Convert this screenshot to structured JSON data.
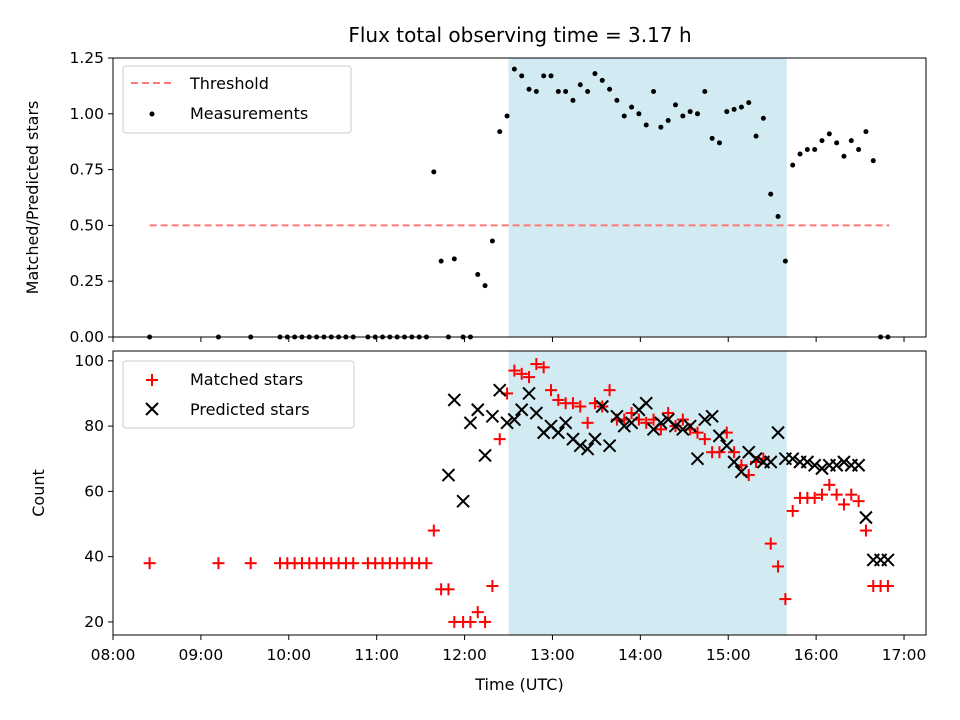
{
  "colors": {
    "threshold": "#ff7878",
    "measurements": "#000000",
    "matched": "#ff0000",
    "predicted": "#000000",
    "band": "#add8e6"
  },
  "chart_data": [
    {
      "type": "scatter",
      "title": "Flux total observing time = 3.17 h",
      "xlabel": "",
      "ylabel": "Matched/Predicted stars",
      "xlim": [
        "08:00",
        "17:15"
      ],
      "ylim": [
        0,
        1.25
      ],
      "yticks": [
        "0.00",
        "0.25",
        "0.50",
        "0.75",
        "1.00",
        "1.25"
      ],
      "highlight_band": {
        "x0": "12:30",
        "x1": "15:40"
      },
      "legend_position": "upper left",
      "grid": false,
      "series": [
        {
          "name": "Threshold",
          "style": "dashed-line",
          "x": [
            "08:25",
            "16:50"
          ],
          "y": [
            0.5,
            0.5
          ]
        },
        {
          "name": "Measurements",
          "style": "dot",
          "x": [
            "08:25",
            "09:12",
            "09:34",
            "09:54",
            "09:59",
            "10:04",
            "10:09",
            "10:14",
            "10:19",
            "10:24",
            "10:29",
            "10:34",
            "10:39",
            "10:44",
            "10:54",
            "10:59",
            "11:04",
            "11:09",
            "11:14",
            "11:19",
            "11:24",
            "11:29",
            "11:34",
            "11:39",
            "11:44",
            "11:49",
            "11:53",
            "11:59",
            "12:04",
            "12:09",
            "12:14",
            "12:19",
            "12:24",
            "12:29",
            "12:34",
            "12:39",
            "12:44",
            "12:49",
            "12:54",
            "12:59",
            "13:04",
            "13:09",
            "13:14",
            "13:19",
            "13:24",
            "13:29",
            "13:34",
            "13:39",
            "13:44",
            "13:49",
            "13:54",
            "13:59",
            "14:04",
            "14:09",
            "14:14",
            "14:19",
            "14:24",
            "14:29",
            "14:34",
            "14:39",
            "14:44",
            "14:49",
            "14:54",
            "14:59",
            "15:04",
            "15:09",
            "15:14",
            "15:19",
            "15:24",
            "15:29",
            "15:34",
            "15:39",
            "15:44",
            "15:49",
            "15:54",
            "15:59",
            "16:04",
            "16:09",
            "16:14",
            "16:19",
            "16:24",
            "16:29",
            "16:34",
            "16:39",
            "16:44",
            "16:49"
          ],
          "y": [
            0,
            0,
            0,
            0,
            0,
            0,
            0,
            0,
            0,
            0,
            0,
            0,
            0,
            0,
            0,
            0,
            0,
            0,
            0,
            0,
            0,
            0,
            0,
            0.74,
            0.34,
            0,
            0.35,
            0,
            0,
            0.28,
            0.23,
            0.43,
            0.92,
            0.99,
            1.2,
            1.17,
            1.11,
            1.1,
            1.17,
            1.17,
            1.1,
            1.1,
            1.06,
            1.13,
            1.1,
            1.18,
            1.15,
            1.11,
            1.06,
            0.99,
            1.03,
            1.0,
            0.95,
            1.1,
            0.94,
            0.97,
            1.04,
            0.99,
            1.01,
            1.0,
            1.1,
            0.89,
            0.87,
            1.01,
            1.02,
            1.03,
            1.05,
            0.9,
            0.98,
            0.64,
            0.54,
            0.34,
            0.77,
            0.82,
            0.84,
            0.84,
            0.88,
            0.91,
            0.87,
            0.81,
            0.88,
            0.84,
            0.92,
            0.79,
            0,
            0
          ]
        }
      ]
    },
    {
      "type": "scatter",
      "title": "",
      "xlabel": "Time (UTC)",
      "ylabel": "Count",
      "xlim": [
        "08:00",
        "17:15"
      ],
      "ylim": [
        16,
        103
      ],
      "xticks": [
        "08:00",
        "09:00",
        "10:00",
        "11:00",
        "12:00",
        "13:00",
        "14:00",
        "15:00",
        "16:00",
        "17:00"
      ],
      "yticks": [
        "20",
        "40",
        "60",
        "80",
        "100"
      ],
      "highlight_band": {
        "x0": "12:30",
        "x1": "15:40"
      },
      "legend_position": "upper left",
      "grid": false,
      "series": [
        {
          "name": "Matched stars",
          "marker": "+",
          "x": [
            "08:25",
            "09:12",
            "09:34",
            "09:54",
            "09:59",
            "10:04",
            "10:09",
            "10:14",
            "10:19",
            "10:24",
            "10:29",
            "10:34",
            "10:39",
            "10:44",
            "10:54",
            "10:59",
            "11:04",
            "11:09",
            "11:14",
            "11:19",
            "11:24",
            "11:29",
            "11:34",
            "11:39",
            "11:44",
            "11:49",
            "11:53",
            "11:59",
            "12:04",
            "12:09",
            "12:14",
            "12:19",
            "12:24",
            "12:29",
            "12:34",
            "12:39",
            "12:44",
            "12:49",
            "12:54",
            "12:59",
            "13:04",
            "13:09",
            "13:14",
            "13:19",
            "13:24",
            "13:29",
            "13:34",
            "13:39",
            "13:44",
            "13:49",
            "13:54",
            "13:59",
            "14:04",
            "14:09",
            "14:14",
            "14:19",
            "14:24",
            "14:29",
            "14:34",
            "14:39",
            "14:44",
            "14:49",
            "14:54",
            "14:59",
            "15:04",
            "15:09",
            "15:14",
            "15:19",
            "15:24",
            "15:29",
            "15:34",
            "15:39",
            "15:44",
            "15:49",
            "15:54",
            "15:59",
            "16:04",
            "16:09",
            "16:14",
            "16:19",
            "16:24",
            "16:29",
            "16:34",
            "16:39",
            "16:44",
            "16:49"
          ],
          "y": [
            38,
            38,
            38,
            38,
            38,
            38,
            38,
            38,
            38,
            38,
            38,
            38,
            38,
            38,
            38,
            38,
            38,
            38,
            38,
            38,
            38,
            38,
            38,
            48,
            30,
            30,
            20,
            20,
            20,
            23,
            20,
            31,
            76,
            90,
            97,
            96,
            95,
            99,
            98,
            91,
            88,
            87,
            87,
            86,
            81,
            87,
            86,
            91,
            82,
            82,
            84,
            82,
            81,
            82,
            79,
            84,
            80,
            82,
            79,
            78,
            76,
            72,
            72,
            78,
            72,
            68,
            65,
            69,
            70,
            44,
            37,
            27,
            54,
            58,
            58,
            58,
            59,
            62,
            59,
            56,
            59,
            57,
            48,
            31,
            31,
            31
          ],
          "_": ""
        },
        {
          "name": "Predicted stars",
          "marker": "x",
          "x": [
            "11:49",
            "11:53",
            "11:59",
            "12:04",
            "12:09",
            "12:14",
            "12:19",
            "12:24",
            "12:29",
            "12:34",
            "12:39",
            "12:44",
            "12:49",
            "12:54",
            "12:59",
            "13:04",
            "13:09",
            "13:14",
            "13:19",
            "13:24",
            "13:29",
            "13:34",
            "13:39",
            "13:44",
            "13:49",
            "13:54",
            "13:59",
            "14:04",
            "14:09",
            "14:14",
            "14:19",
            "14:24",
            "14:29",
            "14:34",
            "14:39",
            "14:44",
            "14:49",
            "14:54",
            "14:59",
            "15:04",
            "15:09",
            "15:14",
            "15:19",
            "15:24",
            "15:29",
            "15:34",
            "15:39",
            "15:44",
            "15:49",
            "15:54",
            "15:59",
            "16:04",
            "16:09",
            "16:14",
            "16:19",
            "16:24",
            "16:29",
            "16:34",
            "16:39",
            "16:44",
            "16:49"
          ],
          "y": [
            65,
            88,
            57,
            81,
            85,
            71,
            83,
            91,
            81,
            82,
            85,
            90,
            84,
            78,
            80,
            78,
            81,
            76,
            74,
            73,
            76,
            86,
            74,
            83,
            80,
            81,
            85,
            87,
            79,
            81,
            82,
            80,
            79,
            80,
            70,
            82,
            83,
            77,
            74,
            69,
            66,
            72,
            70,
            69,
            69,
            78,
            70,
            70,
            69,
            69,
            68,
            67,
            68,
            68,
            69,
            68,
            68,
            52,
            39,
            39,
            39
          ]
        }
      ]
    }
  ]
}
